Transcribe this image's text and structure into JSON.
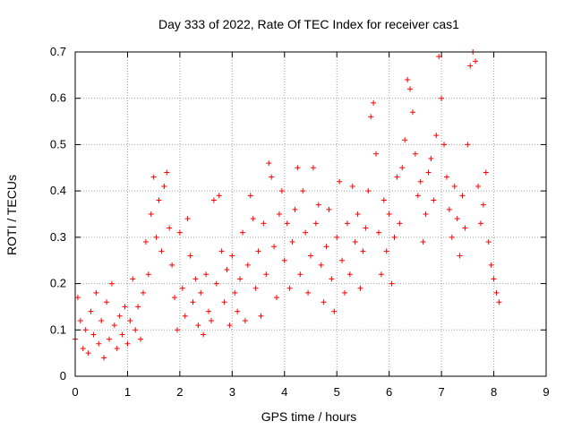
{
  "chart_data": {
    "type": "scatter",
    "title": "Day 333 of 2022, Rate Of TEC Index for receiver cas1",
    "xlabel": "GPS time / hours",
    "ylabel": "ROTI / TECUs",
    "xlim": [
      0,
      9
    ],
    "ylim": [
      0,
      0.7
    ],
    "x_ticks": [
      0,
      1,
      2,
      3,
      4,
      5,
      6,
      7,
      8,
      9
    ],
    "y_ticks": [
      0,
      0.1,
      0.2,
      0.3,
      0.4,
      0.5,
      0.6,
      0.7
    ],
    "y_tick_labels": [
      "0",
      "0.1",
      "0.2",
      "0.3",
      "0.4",
      "0.5",
      "0.6",
      "0.7"
    ],
    "grid": true,
    "marker": "+",
    "color": "#ff0000",
    "series": [
      {
        "values": [
          [
            0.0,
            0.08
          ],
          [
            0.05,
            0.17
          ],
          [
            0.1,
            0.12
          ],
          [
            0.15,
            0.06
          ],
          [
            0.2,
            0.1
          ],
          [
            0.25,
            0.05
          ],
          [
            0.3,
            0.14
          ],
          [
            0.35,
            0.09
          ],
          [
            0.4,
            0.18
          ],
          [
            0.45,
            0.07
          ],
          [
            0.5,
            0.12
          ],
          [
            0.55,
            0.04
          ],
          [
            0.6,
            0.16
          ],
          [
            0.65,
            0.08
          ],
          [
            0.7,
            0.2
          ],
          [
            0.75,
            0.11
          ],
          [
            0.8,
            0.06
          ],
          [
            0.85,
            0.13
          ],
          [
            0.9,
            0.09
          ],
          [
            0.95,
            0.15
          ],
          [
            1.0,
            0.07
          ],
          [
            1.05,
            0.12
          ],
          [
            1.1,
            0.21
          ],
          [
            1.15,
            0.1
          ],
          [
            1.2,
            0.15
          ],
          [
            1.25,
            0.08
          ],
          [
            1.3,
            0.18
          ],
          [
            1.35,
            0.29
          ],
          [
            1.4,
            0.22
          ],
          [
            1.45,
            0.35
          ],
          [
            1.5,
            0.43
          ],
          [
            1.55,
            0.3
          ],
          [
            1.6,
            0.38
          ],
          [
            1.65,
            0.27
          ],
          [
            1.7,
            0.41
          ],
          [
            1.75,
            0.44
          ],
          [
            1.8,
            0.32
          ],
          [
            1.85,
            0.24
          ],
          [
            1.9,
            0.17
          ],
          [
            1.95,
            0.1
          ],
          [
            2.0,
            0.31
          ],
          [
            2.05,
            0.19
          ],
          [
            2.1,
            0.13
          ],
          [
            2.15,
            0.34
          ],
          [
            2.2,
            0.26
          ],
          [
            2.25,
            0.16
          ],
          [
            2.3,
            0.21
          ],
          [
            2.35,
            0.11
          ],
          [
            2.4,
            0.18
          ],
          [
            2.45,
            0.09
          ],
          [
            2.5,
            0.22
          ],
          [
            2.55,
            0.14
          ],
          [
            2.6,
            0.12
          ],
          [
            2.65,
            0.38
          ],
          [
            2.7,
            0.2
          ],
          [
            2.75,
            0.39
          ],
          [
            2.8,
            0.27
          ],
          [
            2.85,
            0.16
          ],
          [
            2.9,
            0.23
          ],
          [
            2.95,
            0.11
          ],
          [
            3.0,
            0.26
          ],
          [
            3.05,
            0.18
          ],
          [
            3.1,
            0.14
          ],
          [
            3.15,
            0.21
          ],
          [
            3.2,
            0.31
          ],
          [
            3.25,
            0.12
          ],
          [
            3.3,
            0.24
          ],
          [
            3.35,
            0.39
          ],
          [
            3.4,
            0.34
          ],
          [
            3.45,
            0.19
          ],
          [
            3.5,
            0.27
          ],
          [
            3.55,
            0.13
          ],
          [
            3.6,
            0.33
          ],
          [
            3.65,
            0.22
          ],
          [
            3.7,
            0.46
          ],
          [
            3.75,
            0.43
          ],
          [
            3.8,
            0.28
          ],
          [
            3.85,
            0.17
          ],
          [
            3.9,
            0.35
          ],
          [
            3.95,
            0.4
          ],
          [
            4.0,
            0.25
          ],
          [
            4.05,
            0.33
          ],
          [
            4.1,
            0.19
          ],
          [
            4.15,
            0.29
          ],
          [
            4.2,
            0.36
          ],
          [
            4.25,
            0.45
          ],
          [
            4.3,
            0.22
          ],
          [
            4.35,
            0.4
          ],
          [
            4.4,
            0.31
          ],
          [
            4.45,
            0.18
          ],
          [
            4.5,
            0.26
          ],
          [
            4.55,
            0.45
          ],
          [
            4.6,
            0.33
          ],
          [
            4.65,
            0.37
          ],
          [
            4.7,
            0.24
          ],
          [
            4.75,
            0.16
          ],
          [
            4.8,
            0.28
          ],
          [
            4.85,
            0.36
          ],
          [
            4.9,
            0.21
          ],
          [
            4.95,
            0.14
          ],
          [
            5.0,
            0.3
          ],
          [
            5.05,
            0.42
          ],
          [
            5.1,
            0.25
          ],
          [
            5.15,
            0.18
          ],
          [
            5.2,
            0.33
          ],
          [
            5.25,
            0.22
          ],
          [
            5.3,
            0.41
          ],
          [
            5.35,
            0.29
          ],
          [
            5.4,
            0.35
          ],
          [
            5.45,
            0.19
          ],
          [
            5.5,
            0.27
          ],
          [
            5.55,
            0.32
          ],
          [
            5.6,
            0.4
          ],
          [
            5.65,
            0.56
          ],
          [
            5.7,
            0.59
          ],
          [
            5.75,
            0.48
          ],
          [
            5.8,
            0.31
          ],
          [
            5.85,
            0.22
          ],
          [
            5.9,
            0.38
          ],
          [
            5.95,
            0.27
          ],
          [
            6.0,
            0.35
          ],
          [
            6.05,
            0.2
          ],
          [
            6.1,
            0.3
          ],
          [
            6.15,
            0.43
          ],
          [
            6.2,
            0.33
          ],
          [
            6.25,
            0.45
          ],
          [
            6.3,
            0.51
          ],
          [
            6.35,
            0.64
          ],
          [
            6.4,
            0.62
          ],
          [
            6.45,
            0.57
          ],
          [
            6.5,
            0.48
          ],
          [
            6.55,
            0.39
          ],
          [
            6.6,
            0.42
          ],
          [
            6.65,
            0.29
          ],
          [
            6.7,
            0.35
          ],
          [
            6.75,
            0.44
          ],
          [
            6.8,
            0.47
          ],
          [
            6.85,
            0.38
          ],
          [
            6.9,
            0.52
          ],
          [
            6.95,
            0.69
          ],
          [
            7.0,
            0.6
          ],
          [
            7.05,
            0.5
          ],
          [
            7.1,
            0.43
          ],
          [
            7.15,
            0.36
          ],
          [
            7.2,
            0.3
          ],
          [
            7.25,
            0.41
          ],
          [
            7.3,
            0.34
          ],
          [
            7.35,
            0.26
          ],
          [
            7.4,
            0.39
          ],
          [
            7.45,
            0.32
          ],
          [
            7.5,
            0.5
          ],
          [
            7.55,
            0.67
          ],
          [
            7.6,
            0.7
          ],
          [
            7.65,
            0.68
          ],
          [
            7.7,
            0.41
          ],
          [
            7.75,
            0.33
          ],
          [
            7.8,
            0.37
          ],
          [
            7.85,
            0.44
          ],
          [
            7.9,
            0.29
          ],
          [
            7.95,
            0.24
          ],
          [
            8.0,
            0.21
          ],
          [
            8.05,
            0.18
          ],
          [
            8.1,
            0.16
          ]
        ]
      }
    ]
  }
}
